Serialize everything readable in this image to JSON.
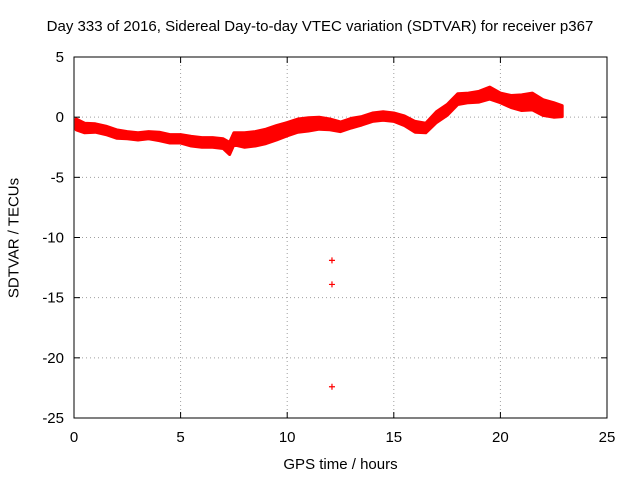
{
  "chart_data": {
    "type": "scatter",
    "title": "Day 333 of 2016, Sidereal Day-to-day VTEC variation (SDTVAR) for receiver p367",
    "xlabel": "GPS time / hours",
    "ylabel": "SDTVAR / TECUs",
    "xlim": [
      0,
      25
    ],
    "ylim": [
      -25,
      5
    ],
    "xticks": [
      0,
      5,
      10,
      15,
      20,
      25
    ],
    "yticks": [
      -25,
      -20,
      -15,
      -10,
      -5,
      0,
      5
    ],
    "grid": true,
    "series": [
      {
        "name": "SDTVAR",
        "color": "#ff0000",
        "marker": "+",
        "band_center": {
          "x": [
            0.1,
            0.5,
            1.0,
            1.5,
            2.0,
            2.5,
            3.0,
            3.5,
            4.0,
            4.5,
            5.0,
            5.5,
            6.0,
            6.5,
            7.0,
            7.3,
            7.5,
            8.0,
            8.5,
            9.0,
            9.5,
            10.0,
            10.5,
            11.0,
            11.5,
            12.0,
            12.5,
            13.0,
            13.5,
            14.0,
            14.5,
            15.0,
            15.5,
            16.0,
            16.5,
            17.0,
            17.5,
            18.0,
            18.5,
            19.0,
            19.5,
            20.0,
            20.5,
            21.0,
            21.5,
            22.0,
            22.5,
            22.9
          ],
          "y": [
            -0.6,
            -0.9,
            -0.9,
            -1.1,
            -1.4,
            -1.5,
            -1.6,
            -1.5,
            -1.6,
            -1.8,
            -1.8,
            -2.0,
            -2.1,
            -2.1,
            -2.2,
            -2.6,
            -1.8,
            -1.9,
            -1.8,
            -1.6,
            -1.3,
            -1.0,
            -0.7,
            -0.6,
            -0.5,
            -0.6,
            -0.8,
            -0.5,
            -0.3,
            0.0,
            0.1,
            0.0,
            -0.3,
            -0.8,
            -0.9,
            0.0,
            0.6,
            1.5,
            1.6,
            1.7,
            2.0,
            1.6,
            1.3,
            1.2,
            1.3,
            0.8,
            0.6,
            0.5
          ],
          "spread": [
            0.9,
            0.8,
            0.7,
            0.7,
            0.7,
            0.6,
            0.6,
            0.6,
            0.7,
            0.7,
            0.7,
            0.8,
            0.8,
            0.8,
            0.8,
            1.0,
            1.0,
            1.2,
            1.2,
            1.2,
            1.2,
            1.1,
            1.1,
            1.1,
            1.0,
            0.9,
            0.8,
            0.8,
            0.7,
            0.7,
            0.7,
            0.7,
            0.8,
            0.9,
            0.8,
            0.9,
            0.9,
            0.9,
            0.8,
            0.9,
            1.0,
            0.8,
            1.0,
            1.3,
            1.4,
            1.3,
            1.2,
            0.9
          ]
        },
        "outliers": [
          {
            "x": 12.1,
            "y": -11.9
          },
          {
            "x": 12.1,
            "y": -13.9
          },
          {
            "x": 12.1,
            "y": -22.4
          }
        ]
      }
    ]
  }
}
